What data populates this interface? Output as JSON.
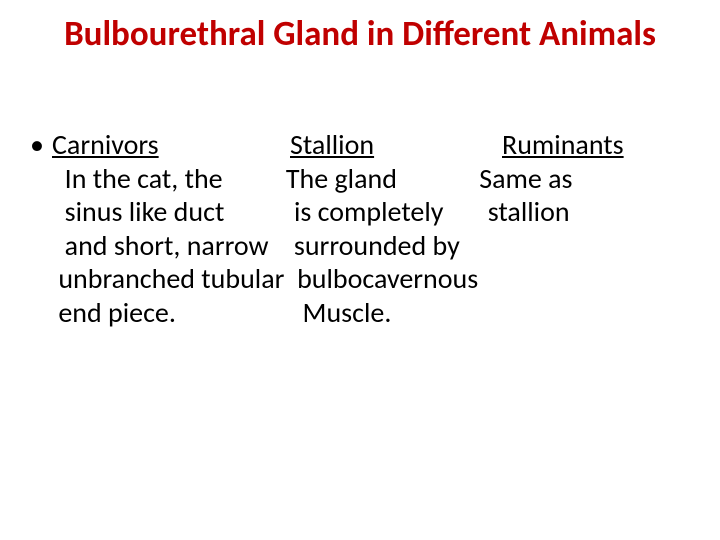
{
  "title_color": "#c00000",
  "text_color": "#000000",
  "background_color": "#ffffff",
  "title_fontsize": 35,
  "body_fontsize": 28,
  "title": "Bulbourethral Gland in Different Animals",
  "headings": {
    "col1": "Carnivors",
    "col2": "Stallion",
    "col3": "Ruminants"
  },
  "lines": {
    "l1": "  In the cat, the          The gland             Same as",
    "l2": "  sinus like duct           is completely       stallion",
    "l3": "  and short, narrow    surrounded by",
    "l4": " unbranched tubular  bulbocavernous",
    "l5": " end piece.                    Muscle."
  }
}
